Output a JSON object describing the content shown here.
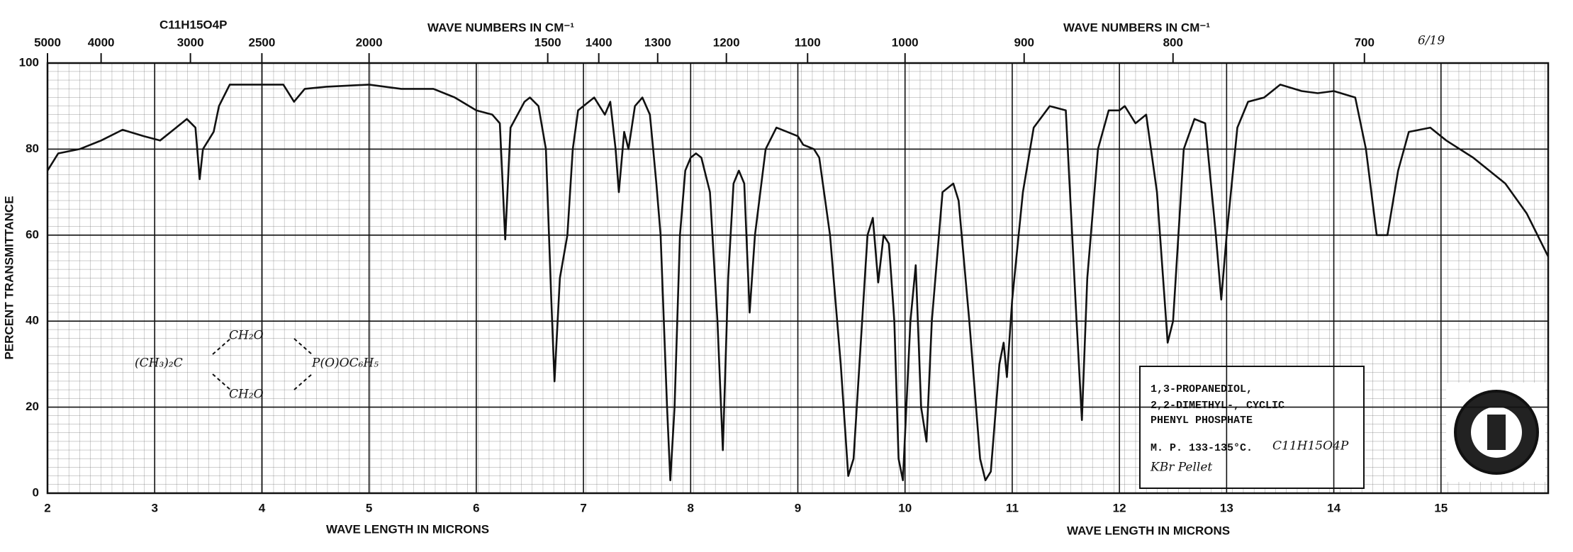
{
  "chart_data": {
    "type": "line",
    "x_label": "WAVE LENGTH IN MICRONS",
    "x2_label": "WAVE NUMBERS IN CM⁻¹",
    "y_label": "PERCENT TRANSMITTANCE",
    "xlim": [
      2,
      16
    ],
    "ylim": [
      0,
      100
    ],
    "xticks": [
      2,
      3,
      4,
      5,
      6,
      7,
      8,
      9,
      10,
      11,
      12,
      13,
      14,
      15
    ],
    "yticks": [
      0,
      20,
      40,
      60,
      80,
      100
    ],
    "x2ticks": [
      5000,
      4000,
      3000,
      2500,
      2000,
      1500,
      1400,
      1300,
      1200,
      1100,
      1000,
      900,
      800,
      700
    ],
    "grid": true,
    "color": "#111111",
    "x": [
      2.0,
      2.1,
      2.3,
      2.5,
      2.7,
      2.9,
      3.05,
      3.2,
      3.3,
      3.38,
      3.42,
      3.45,
      3.55,
      3.6,
      3.7,
      4.0,
      4.2,
      4.3,
      4.4,
      4.6,
      5.0,
      5.3,
      5.6,
      5.8,
      6.0,
      6.15,
      6.22,
      6.27,
      6.32,
      6.45,
      6.5,
      6.58,
      6.65,
      6.7,
      6.73,
      6.78,
      6.85,
      6.9,
      6.95,
      7.05,
      7.1,
      7.2,
      7.25,
      7.3,
      7.33,
      7.38,
      7.42,
      7.48,
      7.55,
      7.62,
      7.65,
      7.68,
      7.72,
      7.78,
      7.81,
      7.85,
      7.9,
      7.95,
      8.0,
      8.05,
      8.1,
      8.18,
      8.25,
      8.3,
      8.35,
      8.4,
      8.45,
      8.5,
      8.55,
      8.6,
      8.7,
      8.8,
      8.9,
      9.0,
      9.05,
      9.15,
      9.2,
      9.3,
      9.4,
      9.47,
      9.52,
      9.6,
      9.65,
      9.7,
      9.75,
      9.8,
      9.85,
      9.9,
      9.94,
      9.98,
      10.05,
      10.1,
      10.15,
      10.2,
      10.25,
      10.35,
      10.45,
      10.5,
      10.6,
      10.7,
      10.75,
      10.8,
      10.88,
      10.92,
      10.95,
      11.0,
      11.1,
      11.2,
      11.35,
      11.5,
      11.6,
      11.65,
      11.7,
      11.8,
      11.9,
      12.0,
      12.05,
      12.15,
      12.25,
      12.35,
      12.45,
      12.5,
      12.6,
      12.7,
      12.8,
      12.9,
      12.95,
      13.0,
      13.1,
      13.2,
      13.35,
      13.5,
      13.7,
      13.85,
      14.0,
      14.2,
      14.3,
      14.4,
      14.5,
      14.6,
      14.7,
      14.9,
      15.05,
      15.3,
      15.6,
      15.8,
      16.0
    ],
    "values": [
      75,
      79,
      80,
      82,
      84.5,
      83,
      82,
      85,
      87,
      85,
      73,
      80,
      84,
      90,
      95,
      95,
      95,
      91,
      94,
      94.5,
      95,
      94,
      94,
      92,
      89,
      88,
      86,
      59,
      85,
      91,
      92,
      90,
      80,
      45,
      26,
      50,
      60,
      80,
      89,
      91,
      92,
      88,
      91,
      80,
      70,
      84,
      80,
      90,
      92,
      88,
      80,
      72,
      60,
      20,
      3,
      20,
      60,
      75,
      78,
      79,
      78,
      70,
      40,
      10,
      50,
      72,
      75,
      72,
      42,
      60,
      80,
      85,
      84,
      83,
      81,
      80,
      78,
      60,
      30,
      4,
      8,
      40,
      60,
      64,
      49,
      60,
      58,
      40,
      8,
      3,
      40,
      53,
      20,
      12,
      40,
      70,
      72,
      68,
      40,
      8,
      3,
      5,
      30,
      35,
      27,
      45,
      70,
      85,
      90,
      89,
      40,
      17,
      50,
      80,
      89,
      89,
      90,
      86,
      88,
      70,
      35,
      40,
      80,
      87,
      86,
      60,
      45,
      60,
      85,
      91,
      92,
      95,
      93.5,
      93,
      93.5,
      92,
      80,
      60,
      60,
      75,
      84,
      85,
      82,
      78,
      72,
      65,
      55
    ],
    "annotations": {
      "spectrum_number": "6/19",
      "formula_top": "C11H15O4P",
      "structure": [
        "(CH₃)₂C",
        "CH₂O",
        "CH₂O",
        "P(O)OC₆H₅"
      ],
      "compound": [
        "1,3-PROPANEDIOL,",
        "2,2-DIMETHYL-, CYCLIC",
        "PHENYL PHOSPHATE"
      ],
      "melting_point": "M. P. 133-135°C.",
      "formula_handwritten": "C11H15O4P",
      "sample": "KBr Pellet"
    }
  }
}
